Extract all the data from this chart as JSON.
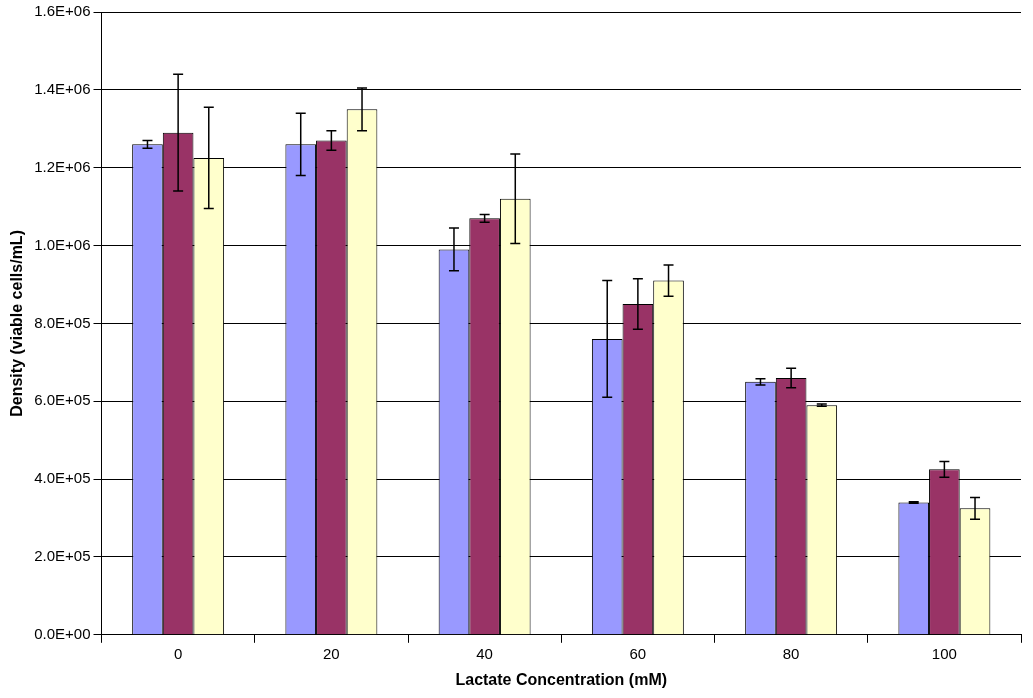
{
  "chart_data": {
    "type": "bar",
    "xlabel": "Lactate Concentration (mM)",
    "ylabel": "Density (viable cells/mL)",
    "categories": [
      "0",
      "20",
      "40",
      "60",
      "80",
      "100"
    ],
    "series": [
      {
        "color": "#9999ff",
        "values": [
          1260000,
          1260000,
          990000,
          760000,
          650000,
          340000
        ],
        "errors": [
          10000,
          80000,
          55000,
          150000,
          8000,
          2000
        ]
      },
      {
        "color": "#993366",
        "values": [
          1290000,
          1270000,
          1070000,
          850000,
          660000,
          425000
        ],
        "errors": [
          150000,
          25000,
          10000,
          65000,
          25000,
          20000
        ]
      },
      {
        "color": "#ffffcc",
        "values": [
          1225000,
          1350000,
          1120000,
          910000,
          590000,
          325000
        ],
        "errors": [
          130000,
          55000,
          115000,
          40000,
          3000,
          28000
        ]
      }
    ],
    "ylim": [
      0,
      1600000
    ],
    "yticks": [
      {
        "value": 0,
        "label": "0.0E+00"
      },
      {
        "value": 200000,
        "label": "2.0E+05"
      },
      {
        "value": 400000,
        "label": "4.0E+05"
      },
      {
        "value": 600000,
        "label": "6.0E+05"
      },
      {
        "value": 800000,
        "label": "8.0E+05"
      },
      {
        "value": 1000000,
        "label": "1.0E+06"
      },
      {
        "value": 1200000,
        "label": "1.2E+06"
      },
      {
        "value": 1400000,
        "label": "1.4E+06"
      },
      {
        "value": 1600000,
        "label": "1.6E+06"
      }
    ],
    "grid": "y",
    "legend": false
  }
}
